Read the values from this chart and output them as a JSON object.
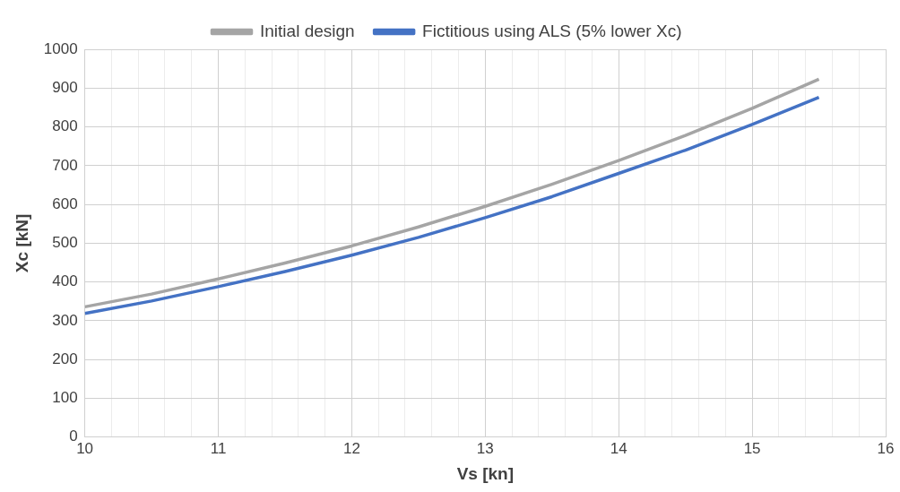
{
  "chart_data": {
    "type": "line",
    "xlabel": "Vs [kn]",
    "ylabel": "Xc [kN]",
    "x": [
      10,
      10.5,
      11,
      11.5,
      12,
      12.5,
      13,
      13.5,
      14,
      14.5,
      15,
      15.5
    ],
    "series": [
      {
        "name": "Initial design",
        "color": "#a5a5a5",
        "values": [
          336,
          369,
          408,
          449,
          493,
          542,
          595,
          652,
          713,
          778,
          848,
          923
        ]
      },
      {
        "name": "Fictitious using ALS (5% lower Xc)",
        "color": "#4472c4",
        "values": [
          319,
          351,
          388,
          427,
          469,
          515,
          566,
          620,
          680,
          740,
          806,
          876
        ]
      }
    ],
    "xlim": [
      10,
      16
    ],
    "xticks": [
      10,
      {
        "value": 10.2,
        "label": null
      },
      {
        "value": 10.4,
        "label": null
      },
      {
        "value": 10.6,
        "label": null
      },
      {
        "value": 10.8,
        "label": null
      },
      11,
      {
        "value": 11.2,
        "label": null
      },
      {
        "value": 11.4,
        "label": null
      },
      {
        "value": 11.6,
        "label": null
      },
      {
        "value": 11.8,
        "label": null
      },
      12,
      {
        "value": 12.2,
        "label": null
      },
      {
        "value": 12.4,
        "label": null
      },
      {
        "value": 12.6,
        "label": null
      },
      {
        "value": 12.8,
        "label": null
      },
      13,
      {
        "value": 13.2,
        "label": null
      },
      {
        "value": 13.4,
        "label": null
      },
      {
        "value": 13.6,
        "label": null
      },
      {
        "value": 13.8,
        "label": null
      },
      14,
      {
        "value": 14.2,
        "label": null
      },
      {
        "value": 14.4,
        "label": null
      },
      {
        "value": 14.6,
        "label": null
      },
      {
        "value": 14.8,
        "label": null
      },
      15,
      {
        "value": 15.2,
        "label": null
      },
      {
        "value": 15.4,
        "label": null
      },
      {
        "value": 15.6,
        "label": null
      },
      {
        "value": 15.8,
        "label": null
      },
      16
    ],
    "ylim": [
      0,
      1000
    ],
    "yticks": [
      0,
      100,
      200,
      300,
      400,
      500,
      600,
      700,
      800,
      900,
      1000
    ],
    "grid": true,
    "legend": "top",
    "marker": "none",
    "line_style": "solid"
  }
}
